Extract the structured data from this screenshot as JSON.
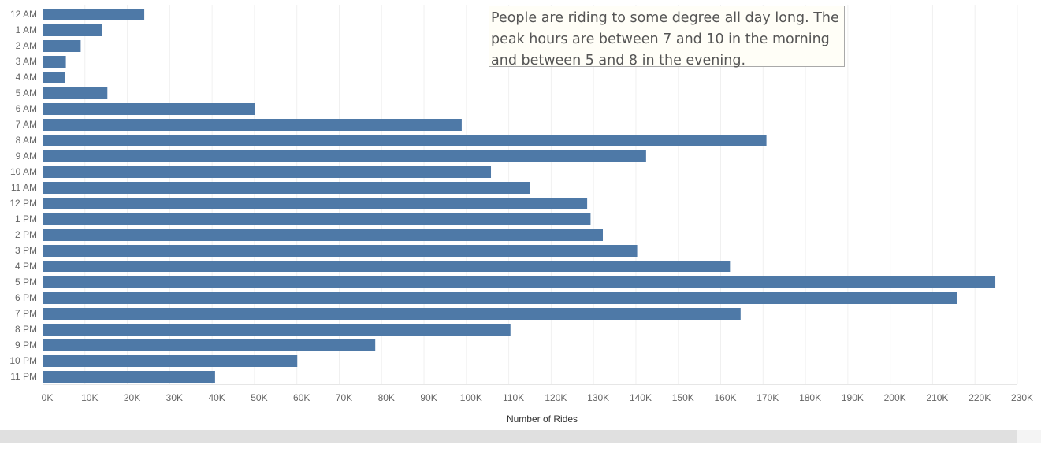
{
  "chart_data": {
    "type": "bar",
    "orientation": "horizontal",
    "categories": [
      "12 AM",
      "1 AM",
      "2 AM",
      "3 AM",
      "4 AM",
      "5 AM",
      "6 AM",
      "7 AM",
      "8 AM",
      "9 AM",
      "10 AM",
      "11 AM",
      "12 PM",
      "1 PM",
      "2 PM",
      "3 PM",
      "4 PM",
      "5 PM",
      "6 PM",
      "7 PM",
      "8 PM",
      "9 PM",
      "10 PM",
      "11 PM"
    ],
    "values": [
      24000,
      14000,
      9000,
      5500,
      5300,
      15300,
      50200,
      98900,
      170800,
      142400,
      105800,
      115000,
      128500,
      129300,
      132200,
      140300,
      162200,
      224800,
      215800,
      164700,
      110400,
      78500,
      60100,
      40700
    ],
    "xlabel": "Number of Rides",
    "ylabel": "",
    "xlim": [
      0,
      230000
    ],
    "x_ticks": [
      0,
      10000,
      20000,
      30000,
      40000,
      50000,
      60000,
      70000,
      80000,
      90000,
      100000,
      110000,
      120000,
      130000,
      140000,
      150000,
      160000,
      170000,
      180000,
      190000,
      200000,
      210000,
      220000,
      230000
    ],
    "x_tick_labels": [
      "0K",
      "10K",
      "20K",
      "30K",
      "40K",
      "50K",
      "60K",
      "70K",
      "80K",
      "90K",
      "100K",
      "110K",
      "120K",
      "130K",
      "140K",
      "150K",
      "160K",
      "170K",
      "180K",
      "190K",
      "200K",
      "210K",
      "220K",
      "230K"
    ],
    "grid": "vertical",
    "bar_color": "#4e79a7",
    "annotation": "People are riding to some degree all day long. The peak hours are between 7 and 10 in the morning and between 5 and 8 in the evening."
  }
}
